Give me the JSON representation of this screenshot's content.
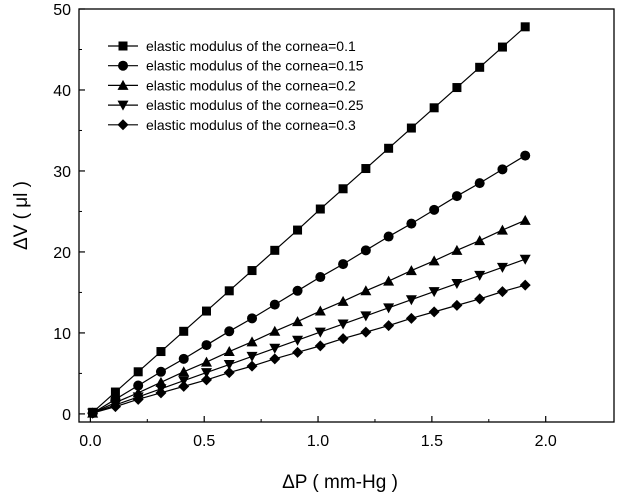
{
  "chart_data": {
    "type": "line",
    "title": "",
    "xlabel": "ΔP ( mm-Hg )",
    "ylabel": "ΔV ( μl )",
    "xlim": [
      -0.05,
      2.3
    ],
    "ylim": [
      -1,
      50
    ],
    "x_ticks": [
      0.0,
      0.5,
      1.0,
      1.5,
      2.0
    ],
    "x_tick_labels": [
      "0.0",
      "0.5",
      "1.0",
      "1.5",
      "2.0"
    ],
    "y_ticks": [
      0,
      10,
      20,
      30,
      40,
      50
    ],
    "y_tick_labels": [
      "0",
      "10",
      "20",
      "30",
      "40",
      "50"
    ],
    "grid": false,
    "legend_position": "top-left",
    "x": [
      0.01,
      0.11,
      0.21,
      0.31,
      0.41,
      0.51,
      0.61,
      0.71,
      0.81,
      0.91,
      1.01,
      1.11,
      1.21,
      1.31,
      1.41,
      1.51,
      1.61,
      1.71,
      1.81,
      1.91
    ],
    "series": [
      {
        "name": "elastic modulus of the cornea=0.1",
        "marker": "square",
        "values": [
          0.2,
          2.7,
          5.2,
          7.7,
          10.2,
          12.7,
          15.2,
          17.7,
          20.2,
          22.7,
          25.3,
          27.8,
          30.3,
          32.8,
          35.3,
          37.8,
          40.3,
          42.8,
          45.3,
          47.8
        ]
      },
      {
        "name": "elastic modulus of the cornea=0.15",
        "marker": "circle",
        "values": [
          0.1,
          1.8,
          3.5,
          5.2,
          6.8,
          8.5,
          10.2,
          11.8,
          13.5,
          15.2,
          16.9,
          18.5,
          20.2,
          21.9,
          23.5,
          25.2,
          26.9,
          28.5,
          30.2,
          31.9
        ]
      },
      {
        "name": "elastic modulus of the cornea=0.2",
        "marker": "triangle-up",
        "values": [
          0.1,
          1.4,
          2.6,
          3.9,
          5.2,
          6.4,
          7.7,
          8.9,
          10.2,
          11.4,
          12.7,
          13.9,
          15.2,
          16.4,
          17.7,
          18.9,
          20.2,
          21.4,
          22.7,
          23.9
        ]
      },
      {
        "name": "elastic modulus of the cornea=0.25",
        "marker": "triangle-down",
        "values": [
          0.1,
          1.1,
          2.1,
          3.1,
          4.1,
          5.1,
          6.1,
          7.1,
          8.1,
          9.1,
          10.1,
          11.1,
          12.1,
          13.1,
          14.1,
          15.1,
          16.1,
          17.1,
          18.1,
          19.1
        ]
      },
      {
        "name": "elastic modulus of the cornea=0.3",
        "marker": "diamond",
        "values": [
          0.1,
          0.9,
          1.8,
          2.6,
          3.4,
          4.2,
          5.1,
          5.9,
          6.8,
          7.6,
          8.4,
          9.3,
          10.1,
          10.9,
          11.8,
          12.6,
          13.4,
          14.2,
          15.1,
          15.9
        ]
      }
    ]
  }
}
